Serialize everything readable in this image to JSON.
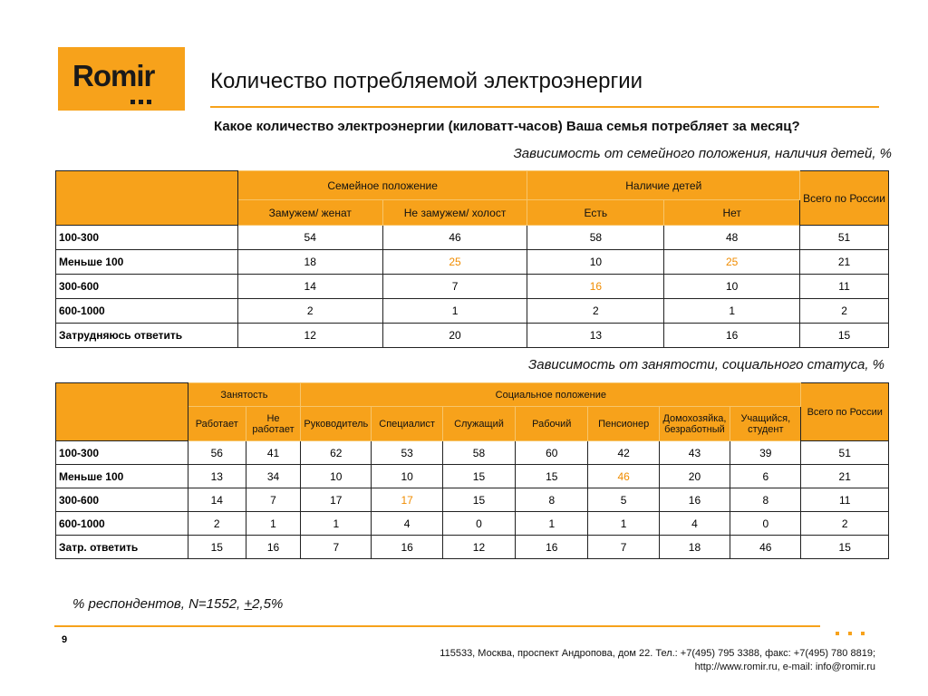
{
  "logo": {
    "text": "Romir"
  },
  "title": "Количество потребляемой электроэнергии",
  "question": "Какое количество электроэнергии (киловатт-часов) Ваша семья потребляет за месяц?",
  "subtitle1": "Зависимость от семейного положения, наличия детей, %",
  "table1": {
    "group1": "Семейное положение",
    "group2": "Наличие детей",
    "total": "Всего по России",
    "cols": [
      "Замужем/ женат",
      "Не замужем/ холост",
      "Есть",
      "Нет"
    ],
    "rows": [
      {
        "label": "100-300",
        "cells": [
          "54",
          "46",
          "58",
          "48",
          "51"
        ]
      },
      {
        "label": "Меньше 100",
        "cells": [
          "18",
          "25",
          "10",
          "25",
          "21"
        ]
      },
      {
        "label": "300-600",
        "cells": [
          "14",
          "7",
          "16",
          "10",
          "11"
        ]
      },
      {
        "label": "600-1000",
        "cells": [
          "2",
          "1",
          "2",
          "1",
          "2"
        ]
      },
      {
        "label": "Затрудняюсь ответить",
        "cells": [
          "12",
          "20",
          "13",
          "16",
          "15"
        ]
      }
    ]
  },
  "subtitle2": "Зависимость от занятости, социального статуса, %",
  "table2": {
    "group1": "Занятость",
    "group2": "Социальное положение",
    "total": "Всего по России",
    "cols": [
      "Работает",
      "Не работает",
      "Руководитель",
      "Специалист",
      "Служащий",
      "Рабочий",
      "Пенсионер",
      "Домохозяйка, безработный",
      "Учащийся, студент"
    ],
    "rows": [
      {
        "label": "100-300",
        "cells": [
          "56",
          "41",
          "62",
          "53",
          "58",
          "60",
          "42",
          "43",
          "39",
          "51"
        ]
      },
      {
        "label": "Меньше 100",
        "cells": [
          "13",
          "34",
          "10",
          "10",
          "15",
          "15",
          "46",
          "20",
          "6",
          "21"
        ]
      },
      {
        "label": "300-600",
        "cells": [
          "14",
          "7",
          "17",
          "17",
          "15",
          "8",
          "5",
          "16",
          "8",
          "11"
        ]
      },
      {
        "label": "600-1000",
        "cells": [
          "2",
          "1",
          "1",
          "4",
          "0",
          "1",
          "1",
          "4",
          "0",
          "2"
        ]
      },
      {
        "label": "Затр. ответить",
        "cells": [
          "15",
          "16",
          "7",
          "16",
          "12",
          "16",
          "7",
          "18",
          "46",
          "15"
        ]
      }
    ]
  },
  "note": {
    "prefix": "% респондентов, N=1552, ",
    "pm": "+",
    "suffix": "2,5%"
  },
  "page_number": "9",
  "address": {
    "line1": "115533, Москва, проспект Андропова, дом 22.   Тел.: +7(495) 795 3388, факс: +7(495) 780 8819;",
    "line2": "http://www.romir.ru, e-mail: info@romir.ru"
  },
  "colors": {
    "accent": "#f7a21b",
    "highlight": "#f08c00"
  }
}
